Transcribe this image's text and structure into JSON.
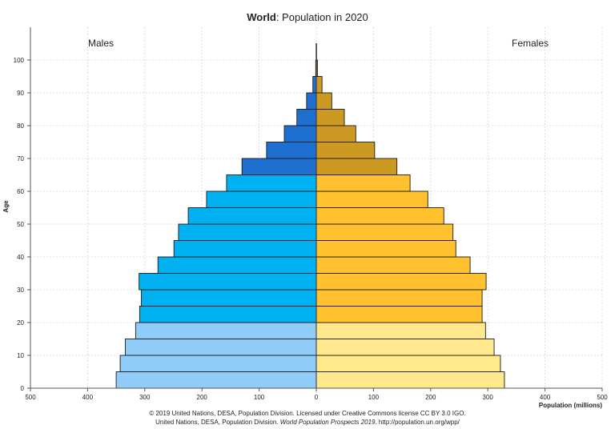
{
  "title_bold": "World",
  "title_rest": ": Population in 2020",
  "left_label": "Males",
  "right_label": "Females",
  "credits": {
    "line1": "© 2019 United Nations, DESA, Population Division. Licensed under Creative Commons license CC BY 3.0 IGO.",
    "line2_pre": "United Nations, DESA, Population Division. ",
    "line2_italic": "World Population Prospects 2019",
    "line2_post": ". http://population.un.org/wpp/"
  },
  "chart_data": {
    "type": "bar",
    "orientation": "horizontal-pyramid",
    "ylabel": "Age",
    "xlabel": "Population (millions)",
    "xlim": [
      -500,
      500
    ],
    "ylim": [
      0,
      100
    ],
    "x_ticks": [
      -500,
      -400,
      -300,
      -200,
      -100,
      0,
      100,
      200,
      300,
      400,
      500
    ],
    "x_tick_labels": [
      "500",
      "400",
      "300",
      "200",
      "100",
      "0",
      "100",
      "200",
      "300",
      "400",
      "500"
    ],
    "y_ticks": [
      0,
      10,
      20,
      30,
      40,
      50,
      60,
      70,
      80,
      90,
      100
    ],
    "grid": true,
    "age_groups": [
      "0-4",
      "5-9",
      "10-14",
      "15-19",
      "20-24",
      "25-29",
      "30-34",
      "35-39",
      "40-44",
      "45-49",
      "50-54",
      "55-59",
      "60-64",
      "65-69",
      "70-74",
      "75-79",
      "80-84",
      "85-89",
      "90-94",
      "95-99",
      "100+"
    ],
    "males": [
      350,
      343,
      334,
      316,
      309,
      306,
      310,
      277,
      249,
      241,
      224,
      192,
      157,
      130,
      87,
      56,
      34,
      17,
      6,
      1,
      0.3
    ],
    "females": [
      329,
      322,
      311,
      296,
      290,
      290,
      297,
      269,
      244,
      239,
      223,
      195,
      164,
      141,
      102,
      69,
      49,
      27,
      10,
      2,
      0.5
    ],
    "group_colors": {
      "males_children": "#8fcdf8",
      "males_working": "#00b0f0",
      "males_elderly": "#1f6fd0",
      "females_children": "#ffe98c",
      "females_working": "#ffc12e",
      "females_elderly": "#cc9a22"
    }
  }
}
